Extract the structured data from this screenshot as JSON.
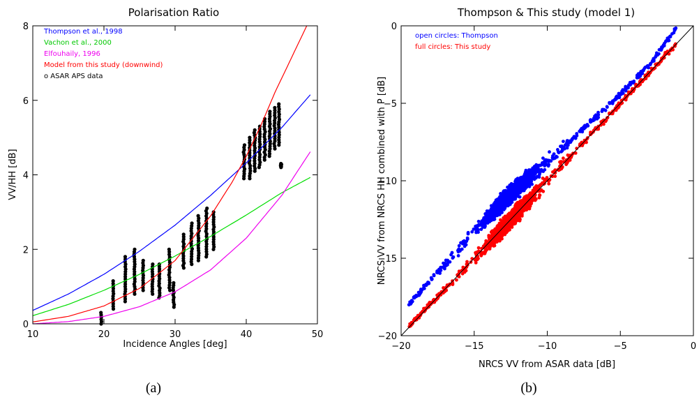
{
  "chart_data": [
    {
      "type": "line",
      "title": "Polarisation Ratio",
      "xlabel": "Incidence Angles [deg]",
      "ylabel": "VV/HH [dB]",
      "xlim": [
        10,
        50
      ],
      "ylim": [
        0,
        8
      ],
      "x_ticks": [
        10,
        20,
        30,
        40,
        50
      ],
      "y_ticks": [
        0,
        2,
        4,
        6,
        8
      ],
      "grid": false,
      "legend_position": "top-left",
      "caption": "(a)",
      "series": [
        {
          "name": "Thompson et al., 1998",
          "color": "#0000ff",
          "x": [
            10,
            15,
            20,
            25,
            30,
            35,
            40,
            45,
            49
          ],
          "y": [
            0.36,
            0.8,
            1.33,
            1.95,
            2.65,
            3.45,
            4.32,
            5.27,
            6.15
          ]
        },
        {
          "name": "Vachon et al., 2000",
          "color": "#00dd00",
          "x": [
            10,
            15,
            20,
            25,
            30,
            35,
            40,
            45,
            49
          ],
          "y": [
            0.22,
            0.52,
            0.9,
            1.33,
            1.82,
            2.35,
            2.92,
            3.52,
            3.93
          ]
        },
        {
          "name": "Elfouhaily, 1996",
          "color": "#ee00ee",
          "x": [
            10,
            15,
            20,
            25,
            30,
            35,
            40,
            45,
            49
          ],
          "y": [
            0.0,
            0.06,
            0.2,
            0.46,
            0.86,
            1.45,
            2.3,
            3.45,
            4.62
          ]
        },
        {
          "name": "Model from this study (downwind)",
          "color": "#ff0000",
          "x": [
            10,
            15,
            20,
            25,
            30,
            35,
            38,
            40,
            42,
            44,
            46,
            48.5
          ],
          "y": [
            0.05,
            0.2,
            0.48,
            0.95,
            1.7,
            2.9,
            3.8,
            4.5,
            5.3,
            6.2,
            7.0,
            8.0
          ]
        },
        {
          "name": "o ASAR APS data",
          "color": "#000000",
          "marker": "circle",
          "clusters": [
            {
              "x": 19.6,
              "y": [
                0.0,
                0.3,
                0.7
              ]
            },
            {
              "x": 21.3,
              "y": [
                0.4,
                1.15
              ]
            },
            {
              "x": 23.0,
              "y": [
                0.6,
                1.8
              ]
            },
            {
              "x": 24.3,
              "y": [
                0.8,
                2.0
              ]
            },
            {
              "x": 25.5,
              "y": [
                0.9,
                1.7
              ]
            },
            {
              "x": 26.8,
              "y": [
                0.8,
                1.6
              ]
            },
            {
              "x": 27.8,
              "y": [
                0.7,
                1.6
              ]
            },
            {
              "x": 29.2,
              "y": [
                0.9,
                2.0
              ]
            },
            {
              "x": 29.8,
              "y": [
                0.45,
                1.1
              ]
            },
            {
              "x": 31.2,
              "y": [
                1.5,
                2.4
              ]
            },
            {
              "x": 32.3,
              "y": [
                1.6,
                2.7
              ]
            },
            {
              "x": 33.3,
              "y": [
                1.7,
                2.9
              ]
            },
            {
              "x": 34.4,
              "y": [
                1.8,
                3.1
              ]
            },
            {
              "x": 35.4,
              "y": [
                2.0,
                3.0
              ]
            },
            {
              "x": 39.7,
              "y": [
                3.9,
                4.8
              ]
            },
            {
              "x": 40.5,
              "y": [
                3.9,
                5.0
              ]
            },
            {
              "x": 41.2,
              "y": [
                4.1,
                5.2
              ]
            },
            {
              "x": 41.9,
              "y": [
                4.2,
                5.3
              ]
            },
            {
              "x": 42.6,
              "y": [
                4.4,
                5.5
              ]
            },
            {
              "x": 43.3,
              "y": [
                4.5,
                5.7
              ]
            },
            {
              "x": 44.0,
              "y": [
                4.7,
                5.8
              ]
            },
            {
              "x": 44.6,
              "y": [
                4.8,
                5.9
              ]
            },
            {
              "x": 44.9,
              "y": [
                4.2,
                4.3
              ]
            }
          ]
        }
      ]
    },
    {
      "type": "scatter",
      "title": "Thompson & This study (model 1)",
      "xlabel": "NRCS VV from ASAR data [dB]",
      "ylabel": "NRCS VV from NRCS HH combined with P [dB]",
      "xlim": [
        -20,
        0
      ],
      "ylim": [
        -20,
        0
      ],
      "x_ticks": [
        -20,
        -15,
        -10,
        -5,
        0
      ],
      "y_ticks": [
        -20,
        -15,
        -10,
        -5,
        0
      ],
      "grid": false,
      "legend_position": "top-left",
      "caption": "(b)",
      "reference_line": {
        "x": [
          -20,
          0
        ],
        "y": [
          -20,
          0
        ],
        "color": "#000000"
      },
      "series": [
        {
          "name": "open circles: Thompson",
          "color": "#0000ff",
          "trend": {
            "x": [
              -19.5,
              -17,
              -15,
              -13,
              -11,
              -9,
              -7,
              -5,
              -3,
              -1.2
            ],
            "y": [
              -18.0,
              -15.4,
              -13.3,
              -11.3,
              -9.6,
              -7.9,
              -6.2,
              -4.4,
              -2.5,
              -0.2
            ]
          }
        },
        {
          "name": "full circles: This study",
          "color": "#ff0000",
          "trend": {
            "x": [
              -19.5,
              -17,
              -15,
              -13,
              -11,
              -9,
              -7,
              -5,
              -3,
              -1.2
            ],
            "y": [
              -19.4,
              -17.0,
              -15.0,
              -13.0,
              -11.0,
              -9.0,
              -7.0,
              -5.0,
              -3.0,
              -1.2
            ]
          }
        }
      ]
    }
  ]
}
